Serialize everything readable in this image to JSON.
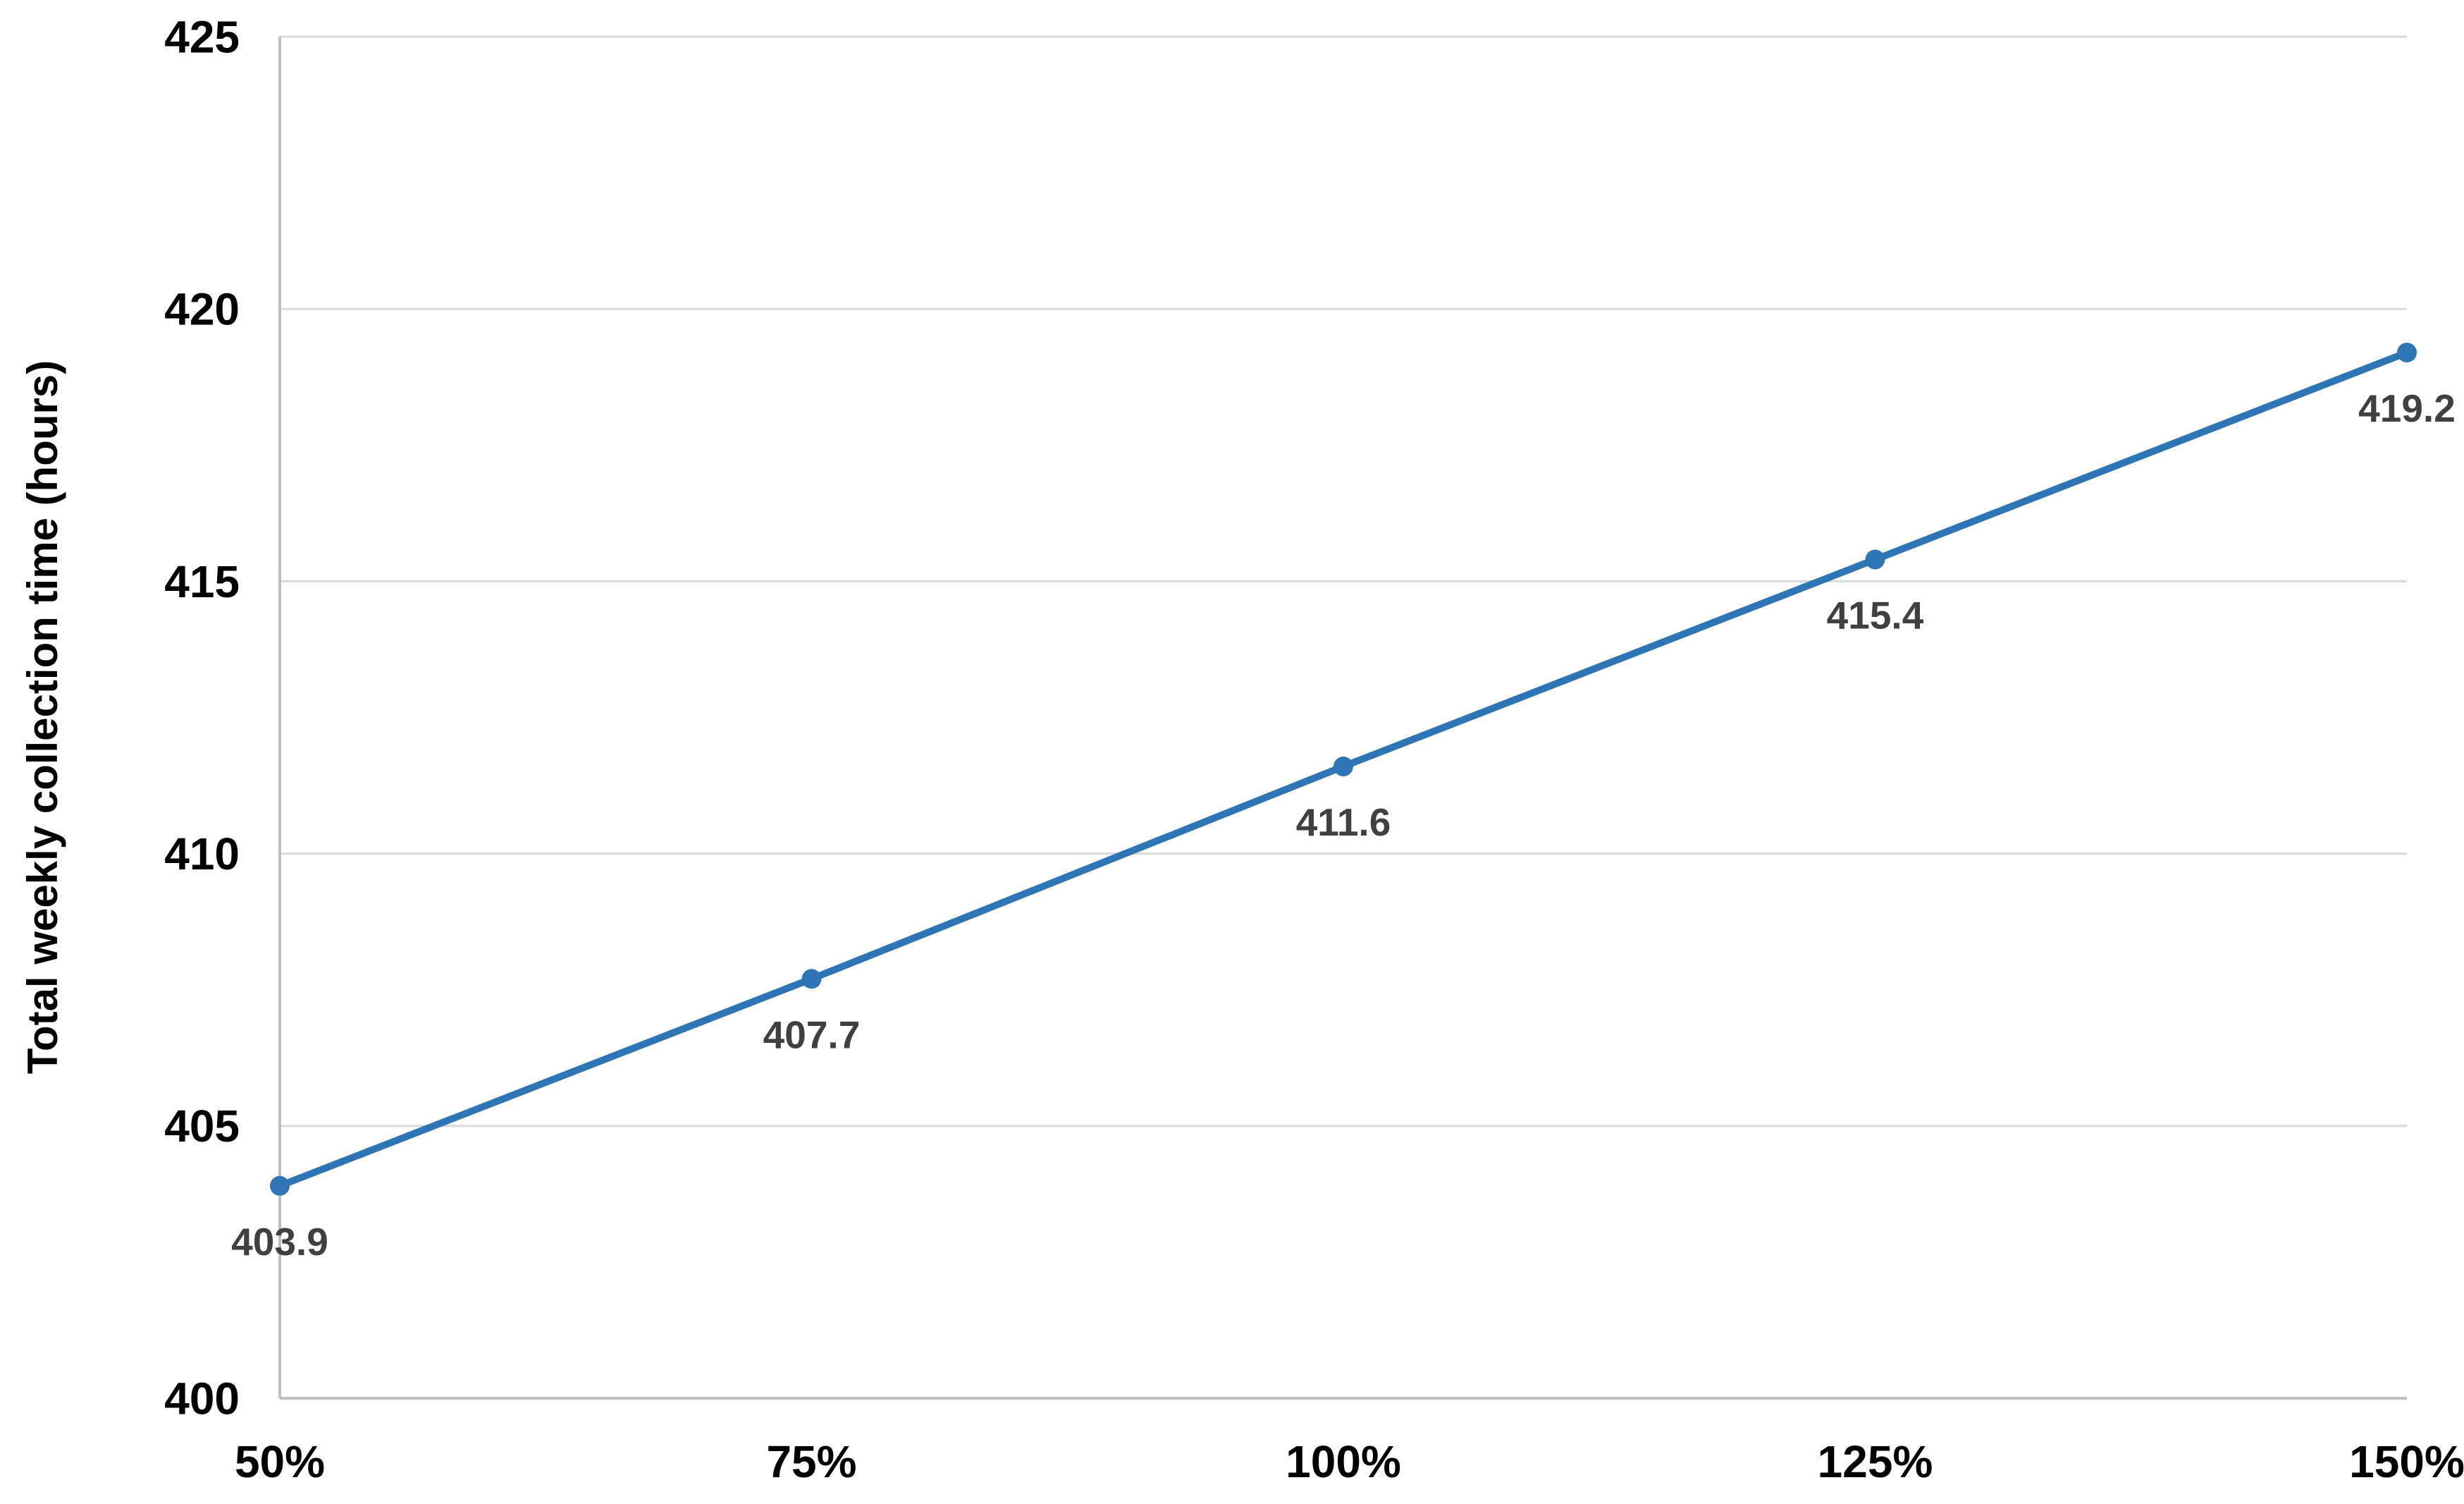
{
  "chart_data": {
    "type": "line",
    "categories": [
      "50%",
      "75%",
      "100%",
      "125%",
      "150%"
    ],
    "values": [
      403.9,
      407.7,
      411.6,
      415.4,
      419.2
    ],
    "data_labels": [
      "403.9",
      "407.7",
      "411.6",
      "415.4",
      "419.2"
    ],
    "title": "",
    "xlabel": "",
    "ylabel": "Total weekly collection time (hours)",
    "ylim": [
      400,
      425
    ],
    "y_ticks": [
      "400",
      "405",
      "410",
      "415",
      "420",
      "425"
    ],
    "y_tick_values": [
      400,
      405,
      410,
      415,
      420,
      425
    ],
    "grid": "horizontal",
    "legend": "none",
    "marker": "circle",
    "colors": {
      "line": "#2E75B6",
      "marker": "#2E75B6",
      "data_label": "#404040",
      "tick_label": "#000000",
      "axis_title": "#000000",
      "gridline": "#D9D9D9",
      "axis_line": "#BFBFBF",
      "background": "#FFFFFF"
    }
  }
}
